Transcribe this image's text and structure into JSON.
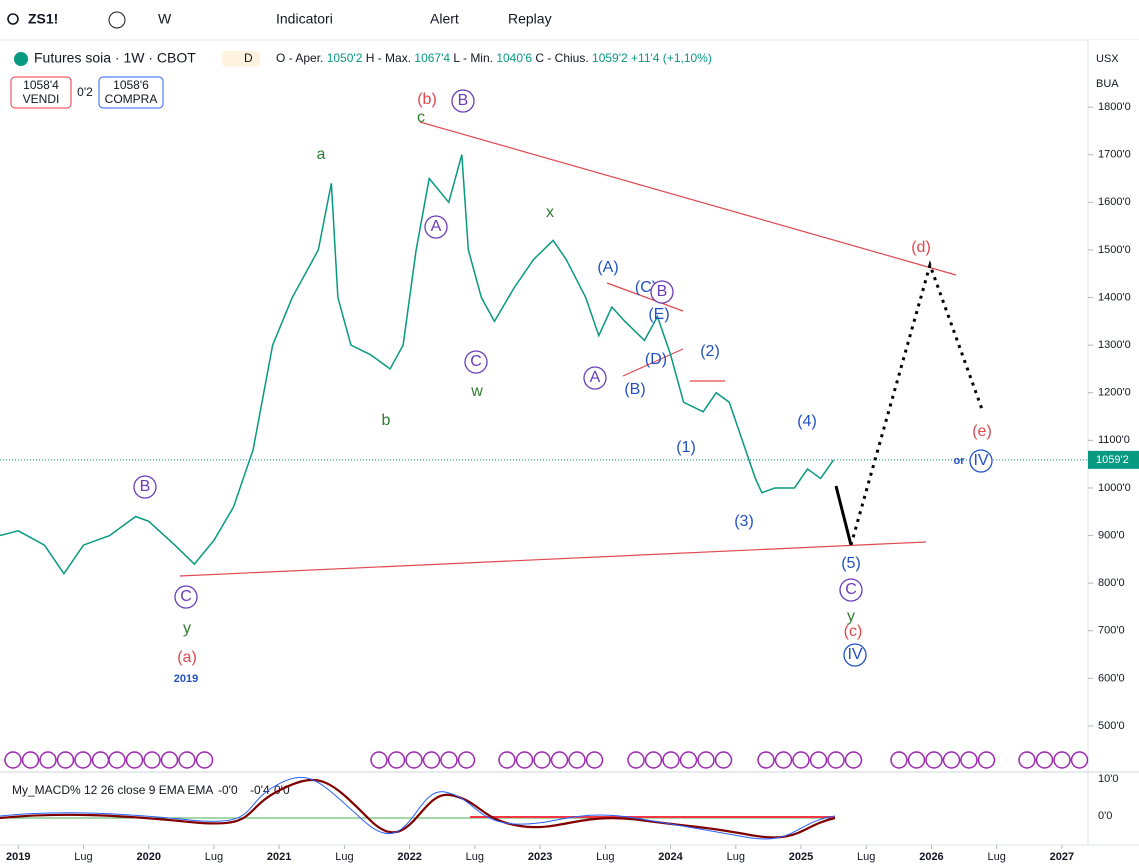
{
  "toolbar": {
    "symbol": "ZS1!",
    "interval": "W",
    "indicators": "Indicatori",
    "alert": "Alert",
    "replay": "Replay"
  },
  "legend": {
    "title": "Futures soia · 1W · CBOT",
    "badge": "D",
    "open_label": "O - Aper.",
    "open": "1050'2",
    "high_label": "H - Max.",
    "high": "1067'4",
    "low_label": "L - Min.",
    "low": "1040'6",
    "close_label": "C - Chius.",
    "close": "1059'2",
    "change": "+11'4 (+1,10%)"
  },
  "trade": {
    "sell": "1058'4",
    "sell_label": "VENDI",
    "spread": "0'2",
    "buy": "1058'6",
    "buy_label": "COMPRA"
  },
  "axis_right": {
    "currency": "USX",
    "unit": "BUA",
    "price_tag": "1059'2"
  },
  "macd": {
    "title": "My_MACD% 12 26 close 9 EMA EMA",
    "v1": "-0'0",
    "v2": "-0'4",
    "v3": "0'0",
    "ticks": [
      "10'0",
      "0'0"
    ]
  },
  "chart_data": {
    "type": "line",
    "color": "#089981",
    "x": [
      2018.86,
      2019.0,
      2019.2,
      2019.35,
      2019.5,
      2019.7,
      2019.9,
      2020.0,
      2020.2,
      2020.35,
      2020.5,
      2020.65,
      2020.8,
      2020.95,
      2021.1,
      2021.3,
      2021.4,
      2021.45,
      2021.55,
      2021.7,
      2021.85,
      2021.95,
      2022.05,
      2022.15,
      2022.3,
      2022.4,
      2022.45,
      2022.55,
      2022.65,
      2022.8,
      2022.95,
      2023.1,
      2023.2,
      2023.35,
      2023.45,
      2023.55,
      2023.65,
      2023.8,
      2023.9,
      2024.0,
      2024.1,
      2024.25,
      2024.35,
      2024.45,
      2024.55,
      2024.65,
      2024.7,
      2024.8,
      2024.95,
      2025.05,
      2025.15,
      2025.25
    ],
    "values": [
      900,
      910,
      880,
      820,
      880,
      900,
      940,
      930,
      880,
      840,
      890,
      960,
      1080,
      1300,
      1400,
      1500,
      1640,
      1400,
      1300,
      1280,
      1250,
      1300,
      1500,
      1650,
      1600,
      1700,
      1500,
      1400,
      1350,
      1420,
      1480,
      1520,
      1480,
      1400,
      1320,
      1380,
      1350,
      1310,
      1360,
      1280,
      1180,
      1160,
      1200,
      1180,
      1100,
      1020,
      990,
      1000,
      1000,
      1040,
      1020,
      1059
    ],
    "xlim": [
      2018.86,
      2027.2
    ],
    "ylim": [
      460,
      1941
    ],
    "xticks": [
      2019,
      {
        "value": 2019.5,
        "label": "Lug"
      },
      2020,
      {
        "value": 2020.5,
        "label": "Lug"
      },
      2021,
      {
        "value": 2021.5,
        "label": "Lug"
      },
      2022,
      {
        "value": 2022.5,
        "label": "Lug"
      },
      2023,
      {
        "value": 2023.5,
        "label": "Lug"
      },
      2024,
      {
        "value": 2024.5,
        "label": "Lug"
      },
      2025,
      {
        "value": 2025.5,
        "label": "Lug"
      },
      2026,
      {
        "value": 2026.5,
        "label": "Lug"
      },
      2027
    ],
    "yticks": [
      {
        "value": 500,
        "label": "500'0"
      },
      {
        "value": 600,
        "label": "600'0"
      },
      {
        "value": 700,
        "label": "700'0"
      },
      {
        "value": 800,
        "label": "800'0"
      },
      {
        "value": 900,
        "label": "900'0"
      },
      {
        "value": 1000,
        "label": "1000'0"
      },
      {
        "value": 1100,
        "label": "1100'0"
      },
      {
        "value": 1200,
        "label": "1200'0"
      },
      {
        "value": 1300,
        "label": "1300'0"
      },
      {
        "value": 1400,
        "label": "1400'0"
      },
      {
        "value": 1500,
        "label": "1500'0"
      },
      {
        "value": 1600,
        "label": "1600'0"
      },
      {
        "value": 1700,
        "label": "1700'0"
      },
      {
        "value": 1800,
        "label": "1800'0"
      }
    ],
    "annotations": [
      "(b)",
      "c",
      "B",
      "a",
      "A",
      "x",
      "(A)",
      "(C)",
      "B",
      "(E)",
      "(D)",
      "(2)",
      "C",
      "w",
      "A",
      "(B)",
      "b",
      "(1)",
      "(4)",
      "(d)",
      "(e)",
      "or",
      "IV",
      "B",
      "(3)",
      "(5)",
      "C",
      "y",
      "(c)",
      "IV",
      "C",
      "y",
      "(a)",
      "2019"
    ]
  }
}
